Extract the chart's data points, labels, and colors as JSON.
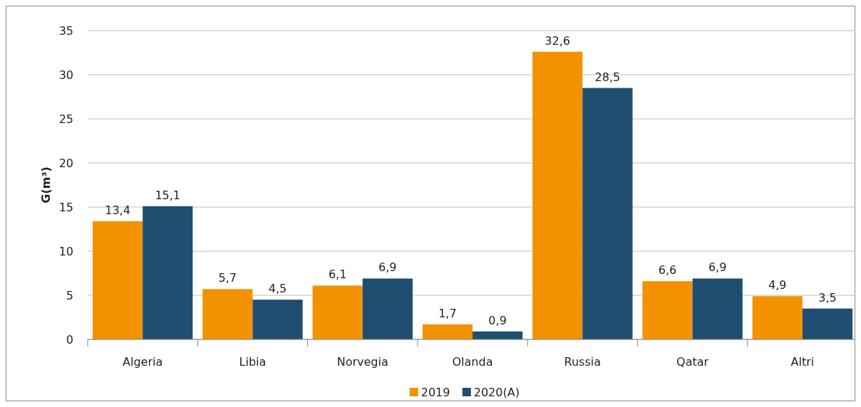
{
  "chart_data": {
    "type": "bar",
    "ylabel": "G(m³)",
    "categories": [
      "Algeria",
      "Libia",
      "Norvegia",
      "Olanda",
      "Russia",
      "Qatar",
      "Altri"
    ],
    "series": [
      {
        "name": "2019",
        "color": "#f39200",
        "values": [
          13.4,
          5.7,
          6.1,
          1.7,
          32.6,
          6.6,
          4.9
        ],
        "value_labels": [
          "13,4",
          "5,7",
          "6,1",
          "1,7",
          "32,6",
          "6,6",
          "4,9"
        ]
      },
      {
        "name": "2020(A)",
        "color": "#1f4e70",
        "values": [
          15.1,
          4.5,
          6.9,
          0.9,
          28.5,
          6.9,
          3.5
        ],
        "value_labels": [
          "15,1",
          "4,5",
          "6,9",
          "0,9",
          "28,5",
          "6,9",
          "3,5"
        ]
      }
    ],
    "ylim": [
      0,
      35
    ],
    "yticks": [
      0,
      5,
      10,
      15,
      20,
      25,
      30,
      35
    ],
    "grid": "y",
    "legend": "bottom"
  }
}
